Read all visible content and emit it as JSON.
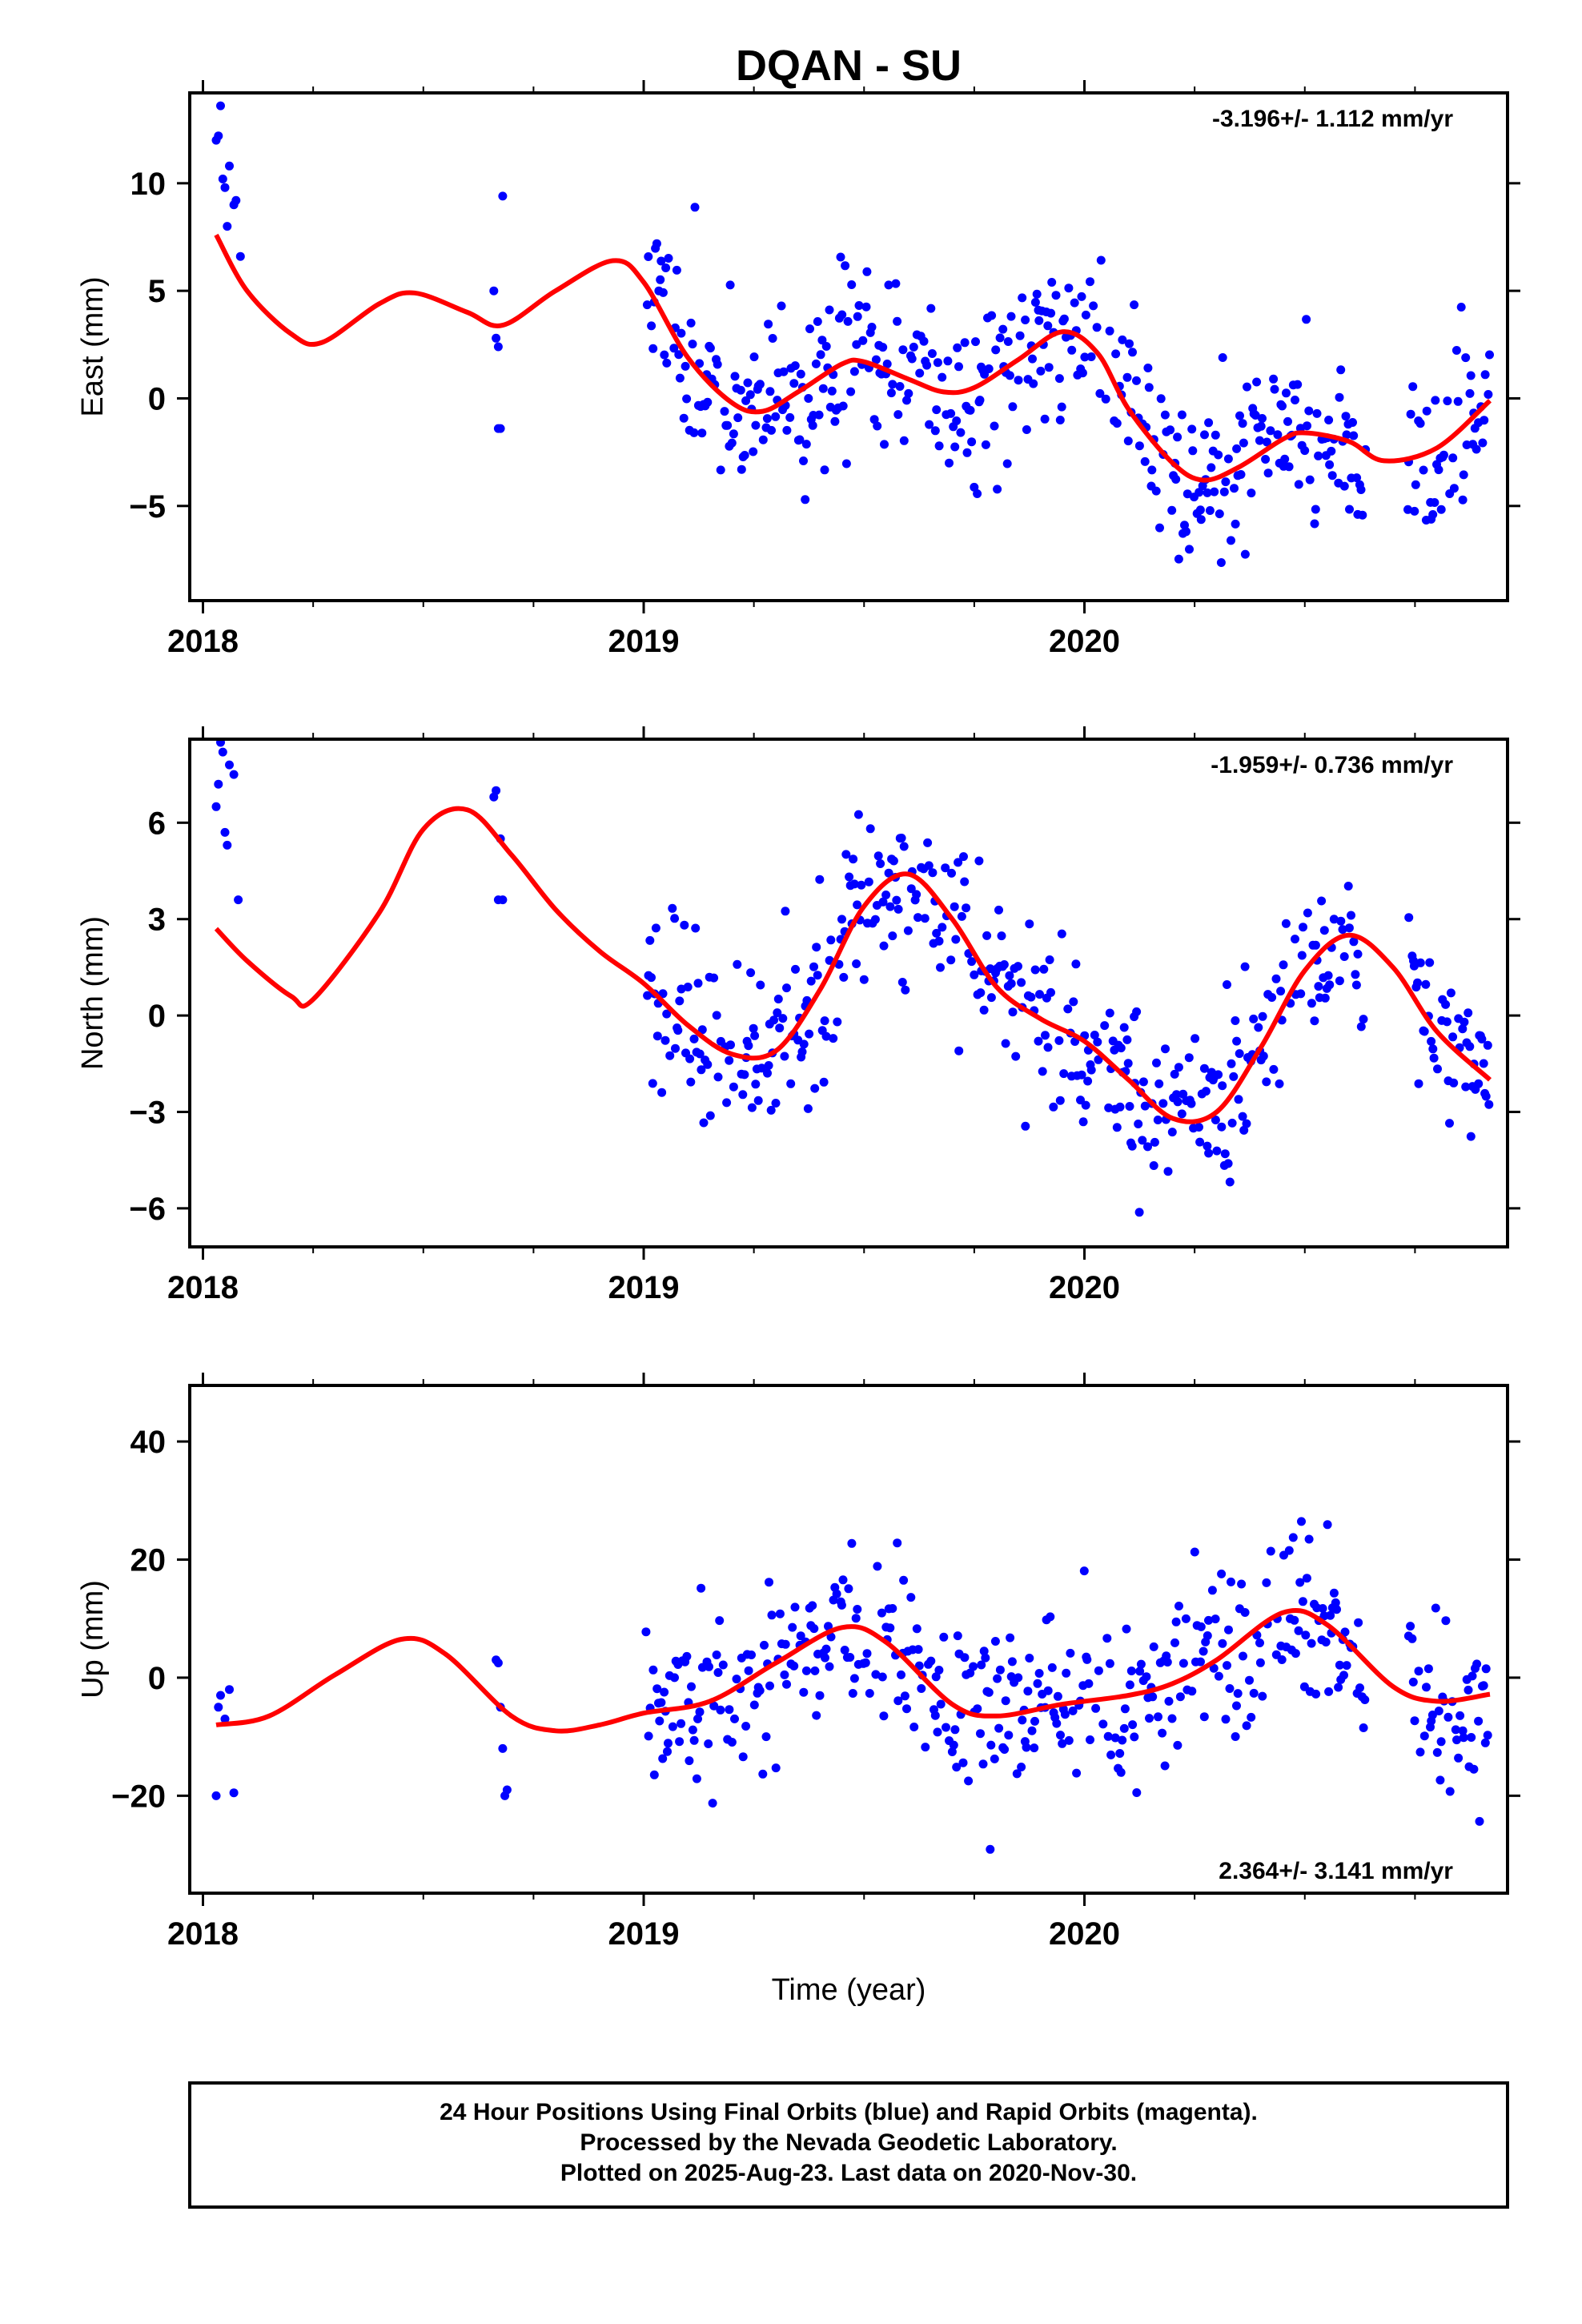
{
  "chart_data": {
    "type": "scatter",
    "title": "DQAN - SU",
    "xlabel": "Time (year)",
    "x_tick_labels": [
      "2018",
      "2019",
      "2020"
    ],
    "xlim": [
      2017.97,
      2020.96
    ],
    "colors": {
      "points": "#0000ff",
      "model": "#ff0000"
    },
    "caption": {
      "line1": "24 Hour Positions Using Final Orbits (blue) and Rapid Orbits (magenta).",
      "line2": "Processed by the Nevada Geodetic Laboratory.",
      "line3": "Plotted on 2025-Aug-23. Last data on 2020-Nov-30."
    },
    "panels": [
      {
        "name": "east",
        "ylabel": "East (mm)",
        "ylim": [
          -9.4,
          14.2
        ],
        "yticks": [
          -5,
          0,
          5,
          10
        ],
        "ytick_labels": [
          "−5",
          "0",
          "5",
          "10"
        ],
        "rate_text": "-3.196+/- 1.112 mm/yr",
        "rate_position": "top-right",
        "model": {
          "x": [
            2018.03,
            2018.1,
            2018.2,
            2018.27,
            2018.4,
            2018.48,
            2018.6,
            2018.68,
            2018.8,
            2018.93,
            2019.0,
            2019.1,
            2019.2,
            2019.27,
            2019.35,
            2019.45,
            2019.5,
            2019.6,
            2019.68,
            2019.75,
            2019.85,
            2019.95,
            2020.03,
            2020.1,
            2020.2,
            2020.27,
            2020.35,
            2020.45,
            2020.5,
            2020.6,
            2020.68,
            2020.8,
            2020.92
          ],
          "y": [
            7.6,
            5.0,
            3.0,
            2.6,
            4.4,
            4.9,
            4.0,
            3.4,
            5.0,
            6.4,
            5.4,
            1.9,
            -0.2,
            -0.6,
            0.3,
            1.6,
            1.7,
            0.9,
            0.3,
            0.5,
            1.8,
            3.1,
            2.1,
            -0.5,
            -3.0,
            -3.8,
            -3.2,
            -1.9,
            -1.6,
            -2.0,
            -2.9,
            -2.3,
            -0.1
          ]
        },
        "seed": 11,
        "early_points": [
          [
            2018.03,
            12.0
          ],
          [
            2018.035,
            12.2
          ],
          [
            2018.04,
            13.6
          ],
          [
            2018.045,
            10.2
          ],
          [
            2018.05,
            9.8
          ],
          [
            2018.055,
            8.0
          ],
          [
            2018.06,
            10.8
          ],
          [
            2018.07,
            9.0
          ],
          [
            2018.075,
            9.2
          ],
          [
            2018.085,
            6.6
          ],
          [
            2018.66,
            5.0
          ],
          [
            2018.665,
            2.8
          ],
          [
            2018.67,
            2.4
          ],
          [
            2018.67,
            -1.4
          ],
          [
            2018.675,
            -1.4
          ],
          [
            2018.68,
            9.4
          ]
        ]
      },
      {
        "name": "north",
        "ylabel": "North (mm)",
        "ylim": [
          -7.2,
          8.6
        ],
        "yticks": [
          -6,
          -3,
          0,
          3,
          6
        ],
        "ytick_labels": [
          "−6",
          "−3",
          "0",
          "3",
          "6"
        ],
        "rate_text": "-1.959+/- 0.736 mm/yr",
        "rate_position": "top-right",
        "model": {
          "x": [
            2018.03,
            2018.1,
            2018.2,
            2018.25,
            2018.4,
            2018.5,
            2018.6,
            2018.7,
            2018.8,
            2018.9,
            2019.0,
            2019.1,
            2019.2,
            2019.3,
            2019.4,
            2019.5,
            2019.6,
            2019.7,
            2019.8,
            2019.9,
            2020.0,
            2020.1,
            2020.2,
            2020.3,
            2020.4,
            2020.5,
            2020.6,
            2020.7,
            2020.8,
            2020.92
          ],
          "y": [
            2.7,
            1.7,
            0.6,
            0.5,
            3.2,
            5.8,
            6.4,
            5.0,
            3.3,
            2.0,
            1.0,
            -0.3,
            -1.2,
            -1.1,
            0.8,
            3.4,
            4.4,
            3.0,
            0.9,
            -0.1,
            -0.8,
            -2.0,
            -3.2,
            -3.0,
            -1.0,
            1.4,
            2.5,
            1.5,
            -0.5,
            -2.0
          ]
        },
        "seed": 23,
        "early_points": [
          [
            2018.03,
            6.5
          ],
          [
            2018.035,
            7.2
          ],
          [
            2018.04,
            8.5
          ],
          [
            2018.045,
            8.2
          ],
          [
            2018.05,
            5.7
          ],
          [
            2018.055,
            5.3
          ],
          [
            2018.06,
            7.8
          ],
          [
            2018.07,
            7.5
          ],
          [
            2018.08,
            3.6
          ],
          [
            2018.66,
            6.8
          ],
          [
            2018.665,
            7.0
          ],
          [
            2018.67,
            3.6
          ],
          [
            2018.675,
            5.5
          ],
          [
            2018.68,
            3.6
          ]
        ]
      },
      {
        "name": "up",
        "ylabel": "Up (mm)",
        "ylim": [
          -36.5,
          49.5
        ],
        "yticks": [
          -20,
          0,
          20,
          40
        ],
        "ytick_labels": [
          "−20",
          "0",
          "20",
          "40"
        ],
        "rate_text": "2.364+/- 3.141 mm/yr",
        "rate_position": "bottom-right",
        "model": {
          "x": [
            2018.03,
            2018.15,
            2018.3,
            2018.45,
            2018.55,
            2018.7,
            2018.8,
            2018.9,
            2019.0,
            2019.15,
            2019.3,
            2019.45,
            2019.55,
            2019.7,
            2019.8,
            2019.95,
            2020.1,
            2020.2,
            2020.3,
            2020.45,
            2020.55,
            2020.7,
            2020.8,
            2020.92
          ],
          "y": [
            -8.0,
            -6.5,
            0.5,
            6.5,
            4.0,
            -6.5,
            -9.0,
            -8.0,
            -6.0,
            -4.0,
            2.5,
            8.5,
            6.0,
            -4.5,
            -6.5,
            -4.5,
            -3.0,
            -1.0,
            3.0,
            11.0,
            9.0,
            -1.5,
            -4.0,
            -2.8
          ]
        },
        "seed": 37,
        "early_points": [
          [
            2018.03,
            -20.0
          ],
          [
            2018.035,
            -5.0
          ],
          [
            2018.04,
            -3.0
          ],
          [
            2018.05,
            -7.0
          ],
          [
            2018.06,
            -2.0
          ],
          [
            2018.07,
            -19.5
          ],
          [
            2018.665,
            3.0
          ],
          [
            2018.67,
            2.5
          ],
          [
            2018.675,
            -5.0
          ],
          [
            2018.68,
            -12.0
          ],
          [
            2018.685,
            -20.0
          ],
          [
            2018.69,
            -19.0
          ]
        ]
      }
    ]
  }
}
